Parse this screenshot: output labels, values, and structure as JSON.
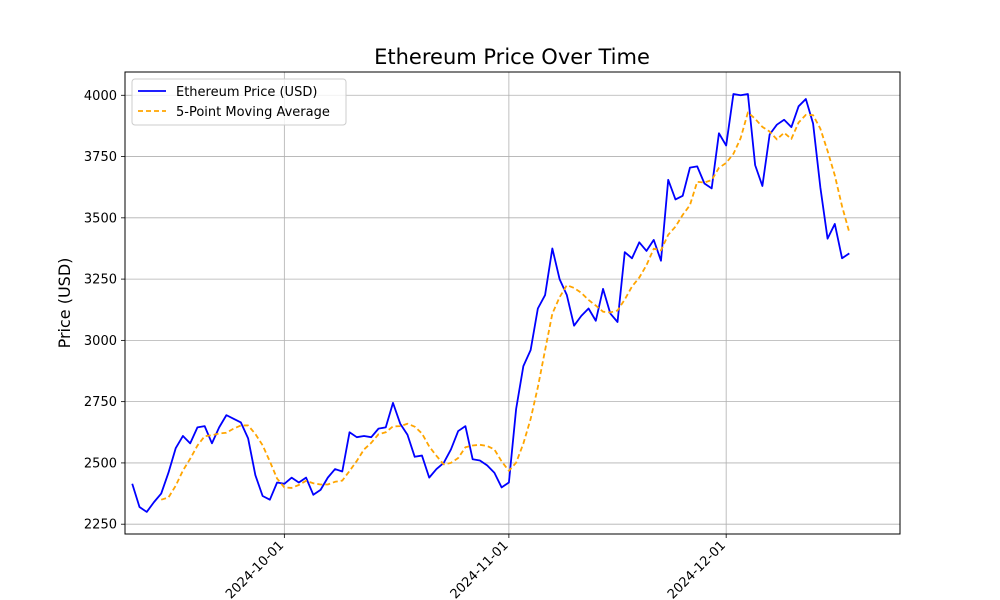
{
  "chart_data": {
    "type": "line",
    "title": "Ethereum Price Over Time",
    "xlabel": "",
    "ylabel": "Price (USD)",
    "ylim": [
      2210,
      4095
    ],
    "xlim": [
      "2024-09-09",
      "2024-12-25"
    ],
    "grid": true,
    "legend_position": "top-left",
    "x_ticks": [
      "2024-10-01",
      "2024-11-01",
      "2024-12-01"
    ],
    "y_ticks": [
      2250,
      2500,
      2750,
      3000,
      3250,
      3500,
      3750,
      4000
    ],
    "x_start": "2024-09-10",
    "x_step_days": 1,
    "series": [
      {
        "name": "Ethereum Price (USD)",
        "color": "#0000ff",
        "style": "solid",
        "values": [
          2415,
          2320,
          2300,
          2340,
          2375,
          2460,
          2560,
          2610,
          2580,
          2645,
          2650,
          2580,
          2645,
          2695,
          2680,
          2665,
          2600,
          2450,
          2365,
          2350,
          2420,
          2415,
          2440,
          2420,
          2440,
          2370,
          2390,
          2440,
          2475,
          2465,
          2625,
          2605,
          2610,
          2605,
          2640,
          2645,
          2745,
          2660,
          2615,
          2525,
          2530,
          2440,
          2475,
          2500,
          2555,
          2630,
          2650,
          2515,
          2510,
          2490,
          2460,
          2400,
          2420,
          2720,
          2895,
          2960,
          3130,
          3185,
          3375,
          3250,
          3185,
          3060,
          3100,
          3130,
          3080,
          3210,
          3110,
          3075,
          3360,
          3335,
          3400,
          3365,
          3410,
          3325,
          3655,
          3575,
          3590,
          3705,
          3710,
          3640,
          3620,
          3845,
          3795,
          4005,
          4000,
          4005,
          3715,
          3630,
          3840,
          3880,
          3900,
          3870,
          3955,
          3985,
          3885,
          3625,
          3415,
          3475,
          3335,
          3355
        ]
      },
      {
        "name": "5-Point Moving Average",
        "color": "#ffa500",
        "style": "dashed",
        "values": [
          null,
          null,
          null,
          null,
          2350,
          2359,
          2407,
          2469,
          2517,
          2571,
          2609,
          2613,
          2620,
          2623,
          2640,
          2653,
          2653,
          2618,
          2572,
          2506,
          2436,
          2400,
          2398,
          2410,
          2427,
          2417,
          2412,
          2412,
          2423,
          2428,
          2467,
          2508,
          2555,
          2582,
          2617,
          2625,
          2649,
          2650,
          2660,
          2648,
          2620,
          2567,
          2529,
          2494,
          2500,
          2520,
          2564,
          2571,
          2574,
          2569,
          2555,
          2506,
          2468,
          2501,
          2579,
          2679,
          2809,
          2960,
          3109,
          3176,
          3225,
          3214,
          3194,
          3165,
          3142,
          3117,
          3114,
          3122,
          3167,
          3220,
          3256,
          3307,
          3374,
          3367,
          3431,
          3464,
          3512,
          3552,
          3647,
          3644,
          3654,
          3704,
          3724,
          3761,
          3825,
          3930,
          3904,
          3871,
          3852,
          3820,
          3847,
          3822,
          3889,
          3920,
          3919,
          3864,
          3773,
          3673,
          3547,
          3441
        ]
      }
    ]
  }
}
